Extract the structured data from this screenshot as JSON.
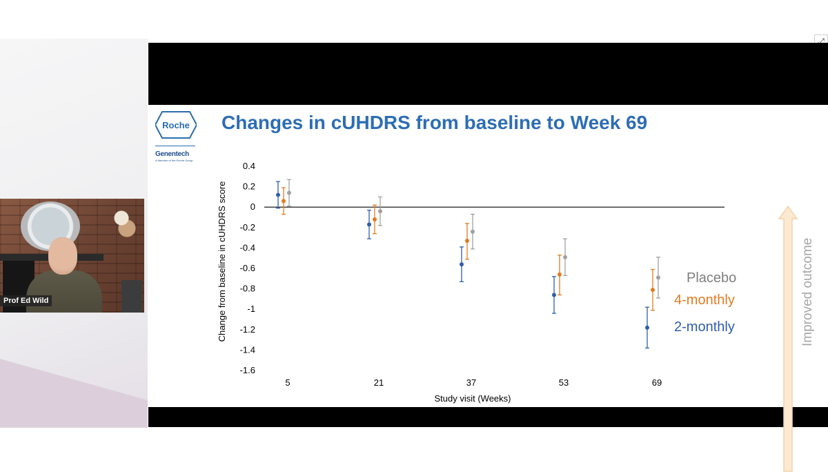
{
  "slide": {
    "title": "Changes in cUHDRS from baseline to Week 69",
    "logo_roche": "Roche",
    "logo_genentech": "Genentech",
    "logo_genentech_sub": "A Member of the Roche Group",
    "improved_label": "Improved outcome"
  },
  "legend": {
    "placebo": "Placebo",
    "four_monthly": "4-monthly",
    "two_monthly": "2-monthly"
  },
  "webcam": {
    "speaker_name": "Prof Ed Wild"
  },
  "colors": {
    "title": "#2e6db3",
    "placebo": "#a0a0a0",
    "four_monthly": "#e07b22",
    "two_monthly": "#2e5ea8",
    "arrow_fill": "#fbe9d2",
    "arrow_stroke": "#f3d3a6"
  },
  "icons": {
    "expand": "expand-icon"
  },
  "chart_data": {
    "type": "scatter",
    "xlabel": "Study visit (Weeks)",
    "ylabel": "Change from baseline in  cUHDRS score",
    "categories": [
      "5",
      "21",
      "37",
      "53",
      "69"
    ],
    "ylim": [
      -1.6,
      0.4
    ],
    "yticks": [
      "0.4",
      "0.2",
      "0",
      "-0.2",
      "-0.4",
      "-0.6",
      "-0.8",
      "-1",
      "-1.2",
      "-1.4",
      "-1.6"
    ],
    "error_bars": true,
    "series": [
      {
        "name": "2-monthly",
        "values": [
          0.12,
          -0.17,
          -0.56,
          -0.86,
          -1.18
        ],
        "lower": [
          -0.01,
          -0.31,
          -0.73,
          -1.04,
          -1.38
        ],
        "upper": [
          0.25,
          -0.03,
          -0.39,
          -0.68,
          -0.98
        ]
      },
      {
        "name": "4-monthly",
        "values": [
          0.06,
          -0.12,
          -0.33,
          -0.66,
          -0.81
        ],
        "lower": [
          -0.07,
          -0.26,
          -0.51,
          -0.86,
          -1.01
        ],
        "upper": [
          0.19,
          0.02,
          -0.16,
          -0.47,
          -0.61
        ]
      },
      {
        "name": "Placebo",
        "values": [
          0.14,
          -0.04,
          -0.24,
          -0.49,
          -0.69
        ],
        "lower": [
          0.01,
          -0.18,
          -0.41,
          -0.67,
          -0.89
        ],
        "upper": [
          0.27,
          0.1,
          -0.07,
          -0.31,
          -0.49
        ]
      }
    ]
  }
}
